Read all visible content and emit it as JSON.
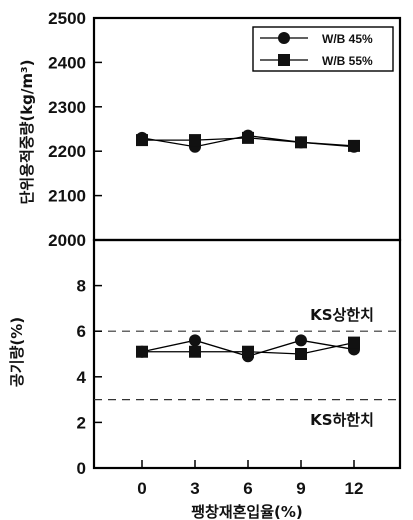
{
  "chart_data": [
    {
      "type": "line",
      "ylabel": "단위용적중량(kg/m³)",
      "ylim": [
        2000,
        2500
      ],
      "yticks": [
        2000,
        2100,
        2200,
        2300,
        2400,
        2500
      ],
      "categories": [
        0,
        3,
        6,
        9,
        12
      ],
      "series": [
        {
          "name": "W/B 45%",
          "marker": "circle",
          "values": [
            2230,
            2210,
            2235,
            2220,
            2210
          ]
        },
        {
          "name": "W/B 55%",
          "marker": "square",
          "values": [
            2225,
            2225,
            2230,
            2220,
            2212
          ]
        }
      ],
      "legend": "top-right"
    },
    {
      "type": "line",
      "xlabel": "팽창재혼입율(%)",
      "ylabel": "공기량(%)",
      "ylim": [
        0,
        10
      ],
      "yticks": [
        0,
        2,
        4,
        6,
        8
      ],
      "xticks": [
        "0",
        "3",
        "6",
        "9",
        "12"
      ],
      "categories": [
        0,
        3,
        6,
        9,
        12
      ],
      "series": [
        {
          "name": "W/B 45%",
          "marker": "circle",
          "values": [
            5.1,
            5.6,
            4.9,
            5.6,
            5.2
          ]
        },
        {
          "name": "W/B 55%",
          "marker": "square",
          "values": [
            5.1,
            5.1,
            5.1,
            5.0,
            5.5
          ]
        }
      ],
      "reference_lines": [
        {
          "label": "KS상한치",
          "value": 6
        },
        {
          "label": "KS하한치",
          "value": 3
        }
      ]
    }
  ]
}
